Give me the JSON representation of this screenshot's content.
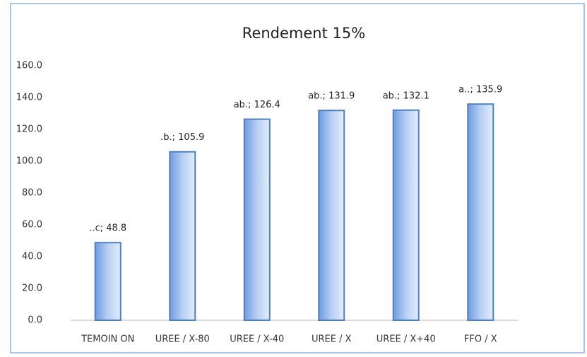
{
  "chart_data": {
    "type": "bar",
    "title": "Rendement 15%",
    "categories": [
      "TEMOIN ON",
      "UREE / X-80",
      "UREE / X-40",
      "UREE / X",
      "UREE / X+40",
      "FFO / X"
    ],
    "values": [
      48.8,
      105.9,
      126.4,
      131.9,
      132.1,
      135.9
    ],
    "value_labels": [
      "..c; 48.8",
      ".b.; 105.9",
      "ab.; 126.4",
      "ab.; 131.9",
      "ab.; 132.1",
      "a..; 135.9"
    ],
    "color": "#4f81bd",
    "ylim": [
      0,
      160
    ],
    "yticks": [
      {
        "value": 0,
        "label": "0.0"
      },
      {
        "value": 20,
        "label": "20.0"
      },
      {
        "value": 40,
        "label": "40.0"
      },
      {
        "value": 60,
        "label": "60.0"
      },
      {
        "value": 80,
        "label": "80.0"
      },
      {
        "value": 100,
        "label": "100.0"
      },
      {
        "value": 120,
        "label": "120.0"
      },
      {
        "value": 140,
        "label": "140.0"
      },
      {
        "value": 160,
        "label": "160.0"
      }
    ],
    "grid": false
  }
}
